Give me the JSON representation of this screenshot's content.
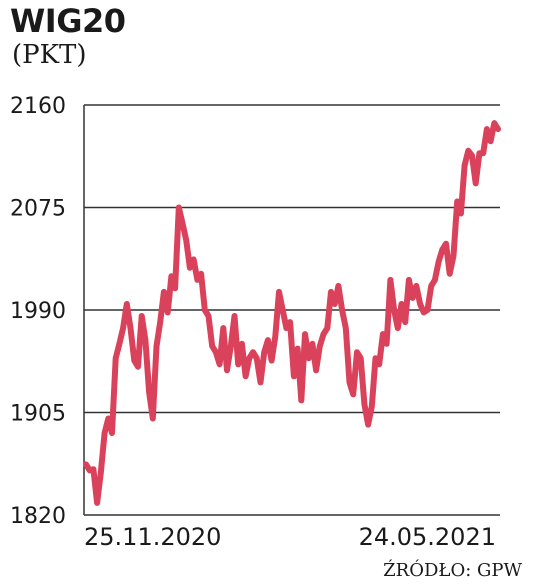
{
  "header": {
    "title": "WIG20",
    "unit": "(PKT)"
  },
  "footer": {
    "source": "ŹRÓDŁO: GPW"
  },
  "colors": {
    "line": "#d9425a",
    "grid": "#333333",
    "text": "#1a1a1a"
  },
  "chart_data": {
    "type": "line",
    "title": "WIG20",
    "subtitle": "(PKT)",
    "ylim": [
      1820,
      2160
    ],
    "y_ticks": [
      "2160",
      "2075",
      "1990",
      "1905",
      "1820"
    ],
    "x_tick_labels": [
      "25.11.2020",
      "24.05.2021"
    ],
    "grid": true,
    "series": [
      {
        "values": [
          1862,
          1857,
          1858,
          1830,
          1855,
          1888,
          1900,
          1888,
          1950,
          1962,
          1975,
          1995,
          1975,
          1948,
          1943,
          1985,
          1965,
          1922,
          1900,
          1960,
          1980,
          2005,
          1988,
          2018,
          2008,
          2075,
          2062,
          2048,
          2025,
          2032,
          2015,
          2020,
          1990,
          1985,
          1960,
          1955,
          1945,
          1975,
          1940,
          1960,
          1985,
          1945,
          1962,
          1935,
          1950,
          1955,
          1950,
          1930,
          1955,
          1965,
          1948,
          1968,
          2005,
          1990,
          1975,
          1980,
          1935,
          1958,
          1915,
          1970,
          1950,
          1962,
          1940,
          1960,
          1970,
          1975,
          2005,
          1995,
          2010,
          1990,
          1975,
          1930,
          1920,
          1955,
          1950,
          1912,
          1895,
          1910,
          1950,
          1945,
          1970,
          1962,
          2015,
          1990,
          1975,
          1995,
          1980,
          2015,
          2000,
          2010,
          1995,
          1988,
          1990,
          2010,
          2015,
          2030,
          2040,
          2045,
          2020,
          2035,
          2080,
          2070,
          2110,
          2122,
          2118,
          2095,
          2120,
          2120,
          2140,
          2130,
          2145,
          2140
        ]
      }
    ]
  }
}
